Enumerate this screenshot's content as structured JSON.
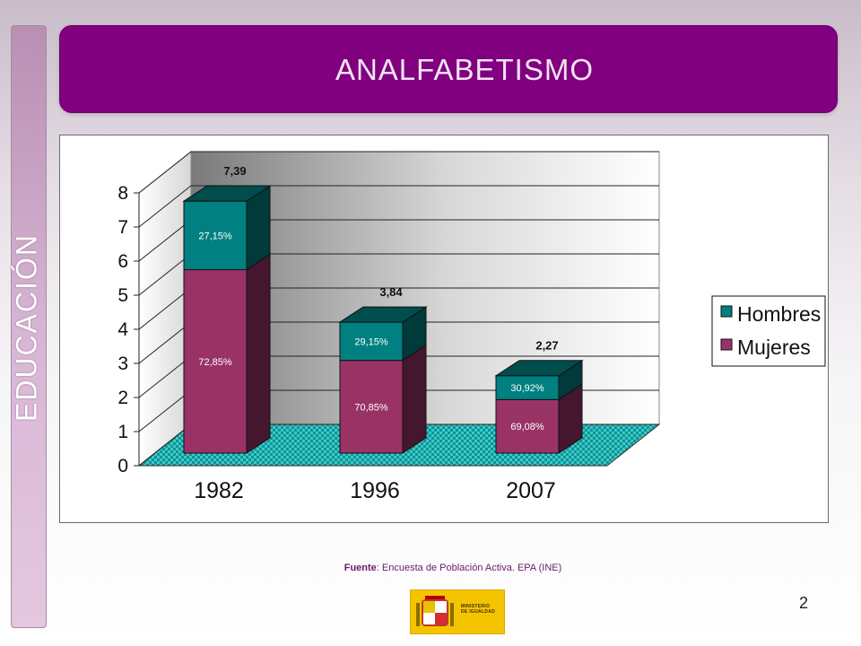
{
  "slide": {
    "side_label": "EDUCACIÓN",
    "title": "ANALFABETISMO",
    "source_label": "Fuente",
    "source_text": ": Encuesta de Población Activa. EPA  (INE)",
    "page_number": "2",
    "logo_text_line1": "MINISTERIO",
    "logo_text_line2": "DE IGUALDAD"
  },
  "colors": {
    "title_bg": "#800080",
    "hombres": "#008080",
    "mujeres": "#993366",
    "floor": "#33cccc"
  },
  "chart_data": {
    "type": "bar",
    "stacked": true,
    "three_d": true,
    "categories": [
      "1982",
      "1996",
      "2007"
    ],
    "totals": [
      7.39,
      3.84,
      2.27
    ],
    "total_labels": [
      "7,39",
      "3,84",
      "2,27"
    ],
    "series": [
      {
        "name": "Mujeres",
        "color": "#993366",
        "values": [
          5.38,
          2.72,
          1.57
        ],
        "labels": [
          "72,85%",
          "70,85%",
          "69,08%"
        ]
      },
      {
        "name": "Hombres",
        "color": "#008080",
        "values": [
          2.01,
          1.12,
          0.7
        ],
        "labels": [
          "27,15%",
          "29,15%",
          "30,92%"
        ]
      }
    ],
    "ylim": [
      0,
      8
    ],
    "yticks": [
      0,
      1,
      2,
      3,
      4,
      5,
      6,
      7,
      8
    ],
    "grid": true,
    "legend_position": "right",
    "legend_order": [
      "Hombres",
      "Mujeres"
    ]
  }
}
